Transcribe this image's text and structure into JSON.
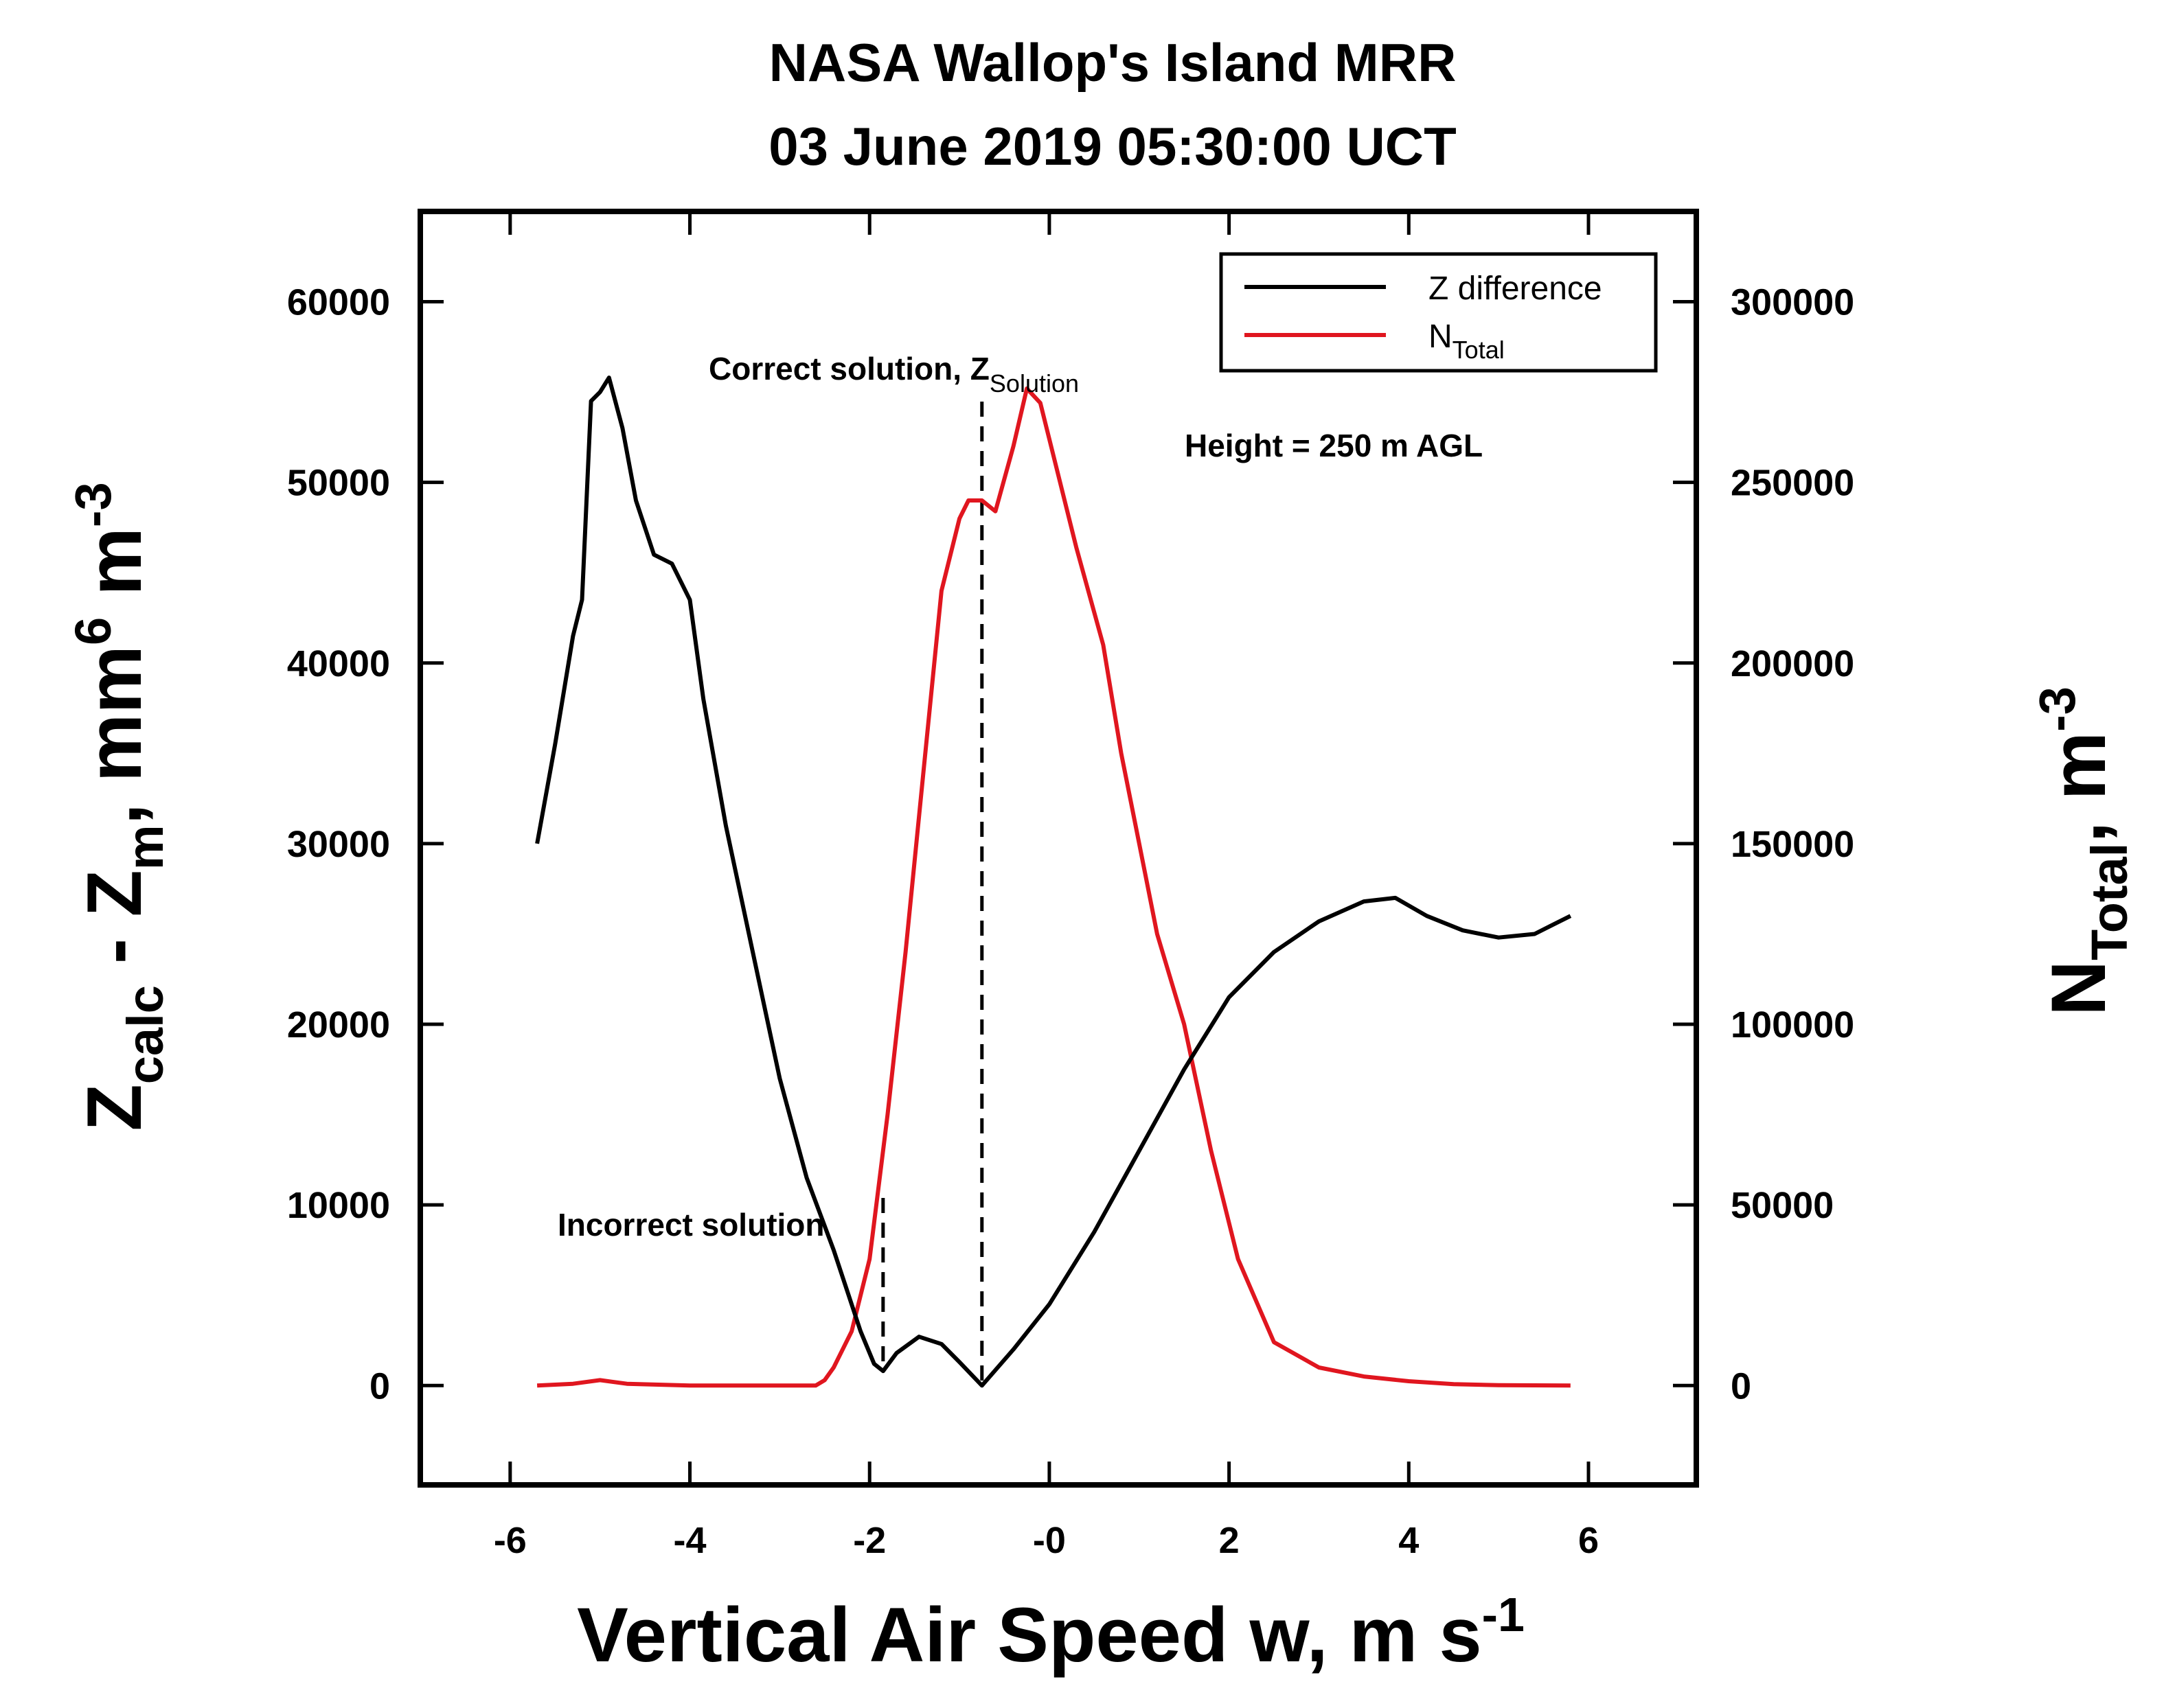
{
  "chart_data": {
    "type": "line",
    "title": "NASA Wallop's Island MRR",
    "subtitle": "03 June 2019 05:30:00 UCT",
    "xlabel": {
      "main": "Vertical Air Speed w, m s",
      "sup": "-1"
    },
    "ylabel": {
      "p1": "Z",
      "s1": "calc",
      "p2": " - Z",
      "s2": "m",
      "p3": ", mm",
      "sup1": "6",
      "p4": " m",
      "sup2": "-3"
    },
    "y2label": {
      "p1": "N",
      "s1": "Total",
      "p2": ", m",
      "sup1": "-3"
    },
    "xlim": [
      -7.0,
      7.2
    ],
    "ylim": [
      -5500,
      65000
    ],
    "y2lim": [
      -27500,
      325000
    ],
    "xticks": [
      -6,
      -4,
      -2,
      0,
      2,
      4,
      6
    ],
    "xtick_labels": [
      "-6",
      "-4",
      "-2",
      "-0",
      "2",
      "4",
      "6"
    ],
    "yticks": [
      0,
      10000,
      20000,
      30000,
      40000,
      50000,
      60000
    ],
    "ytick_labels": [
      "0",
      "10000",
      "20000",
      "30000",
      "40000",
      "50000",
      "60000"
    ],
    "y2ticks": [
      0,
      50000,
      100000,
      150000,
      200000,
      250000,
      300000
    ],
    "y2tick_labels": [
      "0",
      "50000",
      "100000",
      "150000",
      "200000",
      "250000",
      "300000"
    ],
    "series": [
      {
        "name": "Z difference",
        "axis": "left",
        "color": "#000000",
        "points": [
          [
            -5.7,
            30000
          ],
          [
            -5.5,
            35500
          ],
          [
            -5.3,
            41500
          ],
          [
            -5.2,
            43500
          ],
          [
            -5.1,
            54500
          ],
          [
            -5.0,
            55000
          ],
          [
            -4.9,
            55800
          ],
          [
            -4.75,
            53000
          ],
          [
            -4.6,
            49000
          ],
          [
            -4.4,
            46000
          ],
          [
            -4.2,
            45500
          ],
          [
            -4.0,
            43500
          ],
          [
            -3.85,
            38000
          ],
          [
            -3.6,
            31000
          ],
          [
            -3.3,
            24000
          ],
          [
            -3.0,
            17000
          ],
          [
            -2.7,
            11500
          ],
          [
            -2.4,
            7500
          ],
          [
            -2.1,
            3000
          ],
          [
            -1.95,
            1200
          ],
          [
            -1.85,
            800
          ],
          [
            -1.7,
            1800
          ],
          [
            -1.45,
            2700
          ],
          [
            -1.2,
            2300
          ],
          [
            -1.0,
            1300
          ],
          [
            -0.75,
            0
          ],
          [
            -0.4,
            2000
          ],
          [
            0.0,
            4500
          ],
          [
            0.5,
            8500
          ],
          [
            1.0,
            13000
          ],
          [
            1.5,
            17500
          ],
          [
            2.0,
            21500
          ],
          [
            2.5,
            24000
          ],
          [
            3.0,
            25700
          ],
          [
            3.5,
            26800
          ],
          [
            3.85,
            27000
          ],
          [
            4.2,
            26000
          ],
          [
            4.6,
            25200
          ],
          [
            5.0,
            24800
          ],
          [
            5.4,
            25000
          ],
          [
            5.6,
            25500
          ],
          [
            5.8,
            26000
          ]
        ]
      },
      {
        "name": "N_Total",
        "axis": "right",
        "color": "#e0161f",
        "points": [
          [
            -5.7,
            0
          ],
          [
            -5.3,
            500
          ],
          [
            -5.0,
            1500
          ],
          [
            -4.7,
            500
          ],
          [
            -4.0,
            0
          ],
          [
            -3.0,
            0
          ],
          [
            -2.6,
            0
          ],
          [
            -2.5,
            1500
          ],
          [
            -2.4,
            5000
          ],
          [
            -2.2,
            15000
          ],
          [
            -2.0,
            35000
          ],
          [
            -1.8,
            75000
          ],
          [
            -1.6,
            120000
          ],
          [
            -1.4,
            170000
          ],
          [
            -1.2,
            220000
          ],
          [
            -1.0,
            240000
          ],
          [
            -0.9,
            245000
          ],
          [
            -0.75,
            245000
          ],
          [
            -0.6,
            242000
          ],
          [
            -0.4,
            260000
          ],
          [
            -0.25,
            276000
          ],
          [
            -0.1,
            272000
          ],
          [
            0.1,
            252000
          ],
          [
            0.3,
            232000
          ],
          [
            0.6,
            205000
          ],
          [
            0.8,
            175000
          ],
          [
            1.0,
            150000
          ],
          [
            1.2,
            125000
          ],
          [
            1.5,
            100000
          ],
          [
            1.8,
            65000
          ],
          [
            2.1,
            35000
          ],
          [
            2.5,
            12000
          ],
          [
            3.0,
            5000
          ],
          [
            3.5,
            2500
          ],
          [
            4.0,
            1200
          ],
          [
            4.5,
            400
          ],
          [
            5.0,
            100
          ],
          [
            5.8,
            0
          ]
        ]
      }
    ],
    "legend": {
      "position": "top-right",
      "entries": [
        {
          "label": "Z difference",
          "color": "#000000"
        },
        {
          "label_main": "N",
          "label_sub": "Total",
          "color": "#e0161f"
        }
      ]
    },
    "annotations": {
      "correct_main": "Correct solution, Z",
      "correct_sub": "Solution",
      "incorrect": "Incorrect solution",
      "height": "Height = 250 m AGL",
      "correct_x": -0.75,
      "incorrect_x": -1.85
    }
  }
}
